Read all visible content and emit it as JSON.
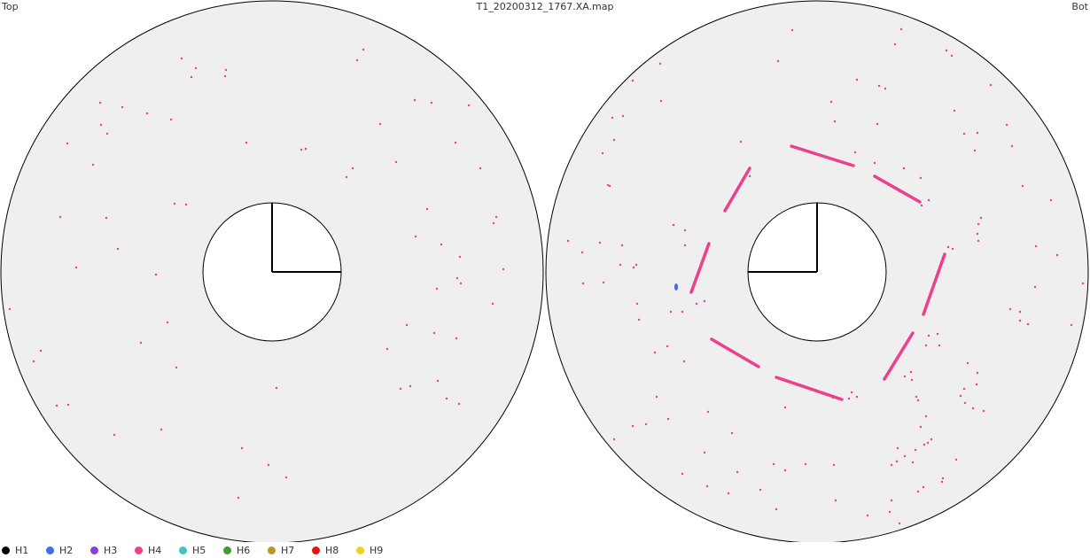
{
  "header": {
    "left_label": "Top",
    "title": "T1_20200312_1767.XA.map",
    "right_label": "Bot"
  },
  "legend": [
    {
      "label": "H1",
      "color": "#000000"
    },
    {
      "label": "H2",
      "color": "#3a6fe8"
    },
    {
      "label": "H3",
      "color": "#8a3ed6"
    },
    {
      "label": "H4",
      "color": "#ec3f8c"
    },
    {
      "label": "H5",
      "color": "#3fc3c0"
    },
    {
      "label": "H6",
      "color": "#3aa02a"
    },
    {
      "label": "H7",
      "color": "#b8992a"
    },
    {
      "label": "H8",
      "color": "#ee1111"
    },
    {
      "label": "H9",
      "color": "#f4d21c"
    }
  ],
  "colors": {
    "disc_fill": "#efefef",
    "outline": "#000000",
    "defect": "#ec3f8c",
    "h2_defect": "#3a6fe8"
  }
}
